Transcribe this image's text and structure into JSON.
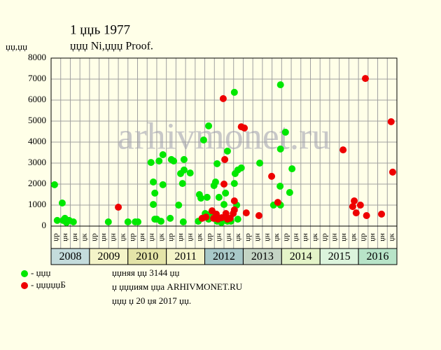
{
  "chart_data": {
    "type": "scatter",
    "title": "1 џџь 1977",
    "subtitle": "џџџ Ni,џџџ Proof.",
    "y_label": "џџ,џџ",
    "watermark": "arhivmonet.ru",
    "ylim": [
      0,
      8000
    ],
    "yticks": [
      0,
      1000,
      2000,
      3000,
      4000,
      5000,
      6000,
      7000,
      8000
    ],
    "xlim": [
      2008,
      2017
    ],
    "grid": true,
    "quarters": [
      "џр",
      "џн",
      "џн",
      "џк",
      "џр",
      "џн",
      "џн",
      "џк",
      "џр",
      "џн",
      "џн",
      "џк",
      "џр",
      "џн",
      "џн",
      "џк",
      "џр",
      "џн",
      "џн",
      "џк",
      "џр",
      "џн",
      "џн",
      "џк",
      "џр",
      "џн",
      "џн",
      "џк",
      "џр",
      "џн",
      "џн",
      "џк",
      "џр",
      "џн",
      "џн",
      "џк"
    ],
    "years": [
      "2008",
      "2009",
      "2010",
      "2011",
      "2012",
      "2013",
      "2014",
      "2015",
      "2016"
    ],
    "year_colors": [
      "#c4dcdc",
      "#f4f4c8",
      "#e4e4a8",
      "#f4f4c8",
      "#a8c8c8",
      "#c4d4c4",
      "#e4f4c8",
      "#dcf4dc",
      "#b8e4c8"
    ],
    "series": [
      {
        "name": "- џџџ",
        "color": "#00e800",
        "x": [
          2008.09,
          2008.16,
          2008.29,
          2008.31,
          2008.36,
          2008.4,
          2008.47,
          2008.58,
          2009.49,
          2010.0,
          2010.19,
          2010.26,
          2010.6,
          2010.66,
          2010.66,
          2010.7,
          2010.7,
          2010.75,
          2010.81,
          2010.86,
          2010.91,
          2010.91,
          2011.1,
          2011.13,
          2011.19,
          2011.32,
          2011.37,
          2011.42,
          2011.44,
          2011.46,
          2011.46,
          2011.62,
          2011.83,
          2011.86,
          2011.9,
          2011.97,
          2012.01,
          2012.06,
          2012.1,
          2012.1,
          2012.17,
          2012.24,
          2012.28,
          2012.32,
          2012.32,
          2012.37,
          2012.43,
          2012.5,
          2012.54,
          2012.59,
          2012.59,
          2012.68,
          2012.77,
          2012.77,
          2012.79,
          2012.83,
          2012.86,
          2012.86,
          2012.95,
          2013.43,
          2013.79,
          2013.96,
          2013.97,
          2013.97,
          2013.97,
          2014.1,
          2014.21,
          2014.27
        ],
        "values": [
          1970,
          270,
          1100,
          270,
          370,
          170,
          270,
          200,
          200,
          200,
          200,
          200,
          3030,
          2100,
          1030,
          1570,
          330,
          330,
          3100,
          230,
          3400,
          1970,
          370,
          3170,
          3100,
          1000,
          2500,
          2030,
          200,
          3170,
          2670,
          2530,
          230,
          1500,
          1330,
          4100,
          600,
          1370,
          4770,
          330,
          630,
          1930,
          2100,
          2970,
          230,
          1370,
          170,
          1030,
          1570,
          3570,
          230,
          230,
          6370,
          2030,
          2500,
          1000,
          2670,
          330,
          2770,
          3000,
          1000,
          1900,
          6730,
          3670,
          1000,
          4470,
          1600,
          2730
        ]
      },
      {
        "name": "- џџџџџБ",
        "color": "#ee0000",
        "x": [
          2009.75,
          2011.93,
          2012.03,
          2012.19,
          2012.23,
          2012.3,
          2012.34,
          2012.44,
          2012.48,
          2012.5,
          2012.52,
          2012.55,
          2012.59,
          2012.66,
          2012.74,
          2012.77,
          2012.77,
          2012.95,
          2013.03,
          2013.08,
          2013.41,
          2013.74,
          2013.9,
          2015.6,
          2015.85,
          2015.89,
          2015.94,
          2016.05,
          2016.18,
          2016.21,
          2016.6,
          2016.85,
          2016.89
        ],
        "values": [
          900,
          370,
          430,
          730,
          370,
          570,
          330,
          400,
          6070,
          2000,
          3170,
          600,
          330,
          370,
          600,
          1200,
          770,
          4730,
          4670,
          630,
          500,
          2370,
          1130,
          3630,
          930,
          1200,
          630,
          1000,
          7030,
          500,
          570,
          4970,
          2570
        ]
      }
    ],
    "notes": [
      "џџняя џџ 3144 џџ",
      "џ џџџиям џџа ARHIVMONET.RU",
      "џџџ џ 20 џя 2017 џџ."
    ]
  }
}
